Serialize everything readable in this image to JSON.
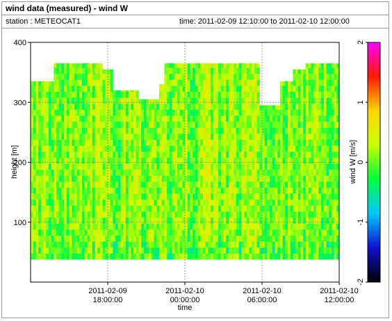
{
  "header": {
    "title": "wind data (measured) - wind W",
    "station": "station : METEOCAT1",
    "time_range": "time: 2011-02-09 12:10:00 to 2011-02-10 12:00:00"
  },
  "chart_data": {
    "type": "heatmap",
    "xlabel": "time",
    "ylabel": "height [m]",
    "xlim": [
      0,
      24
    ],
    "ylim": [
      0,
      400
    ],
    "x_ticks": [
      {
        "x": 6,
        "date": "2011-02-09",
        "time": "18:00:00"
      },
      {
        "x": 12,
        "date": "2011-02-10",
        "time": "00:00:00"
      },
      {
        "x": 18,
        "date": "2011-02-10",
        "time": "06:00:00"
      },
      {
        "x": 24,
        "date": "2011-02-10",
        "time": "12:00:00"
      }
    ],
    "y_ticks": [
      100,
      200,
      300,
      400
    ],
    "grid": true,
    "colorbar": {
      "label": "wind W [m/s]",
      "min": -2,
      "max": 2,
      "ticks": [
        -2,
        -1,
        0,
        1,
        2
      ],
      "stops": [
        "#000000",
        "#1010d0",
        "#00c8ff",
        "#00ff40",
        "#c8ff00",
        "#ffd700",
        "#ff1a00",
        "#ff00ff"
      ]
    },
    "data_coverage": {
      "min_height": 38,
      "top_heights": [
        {
          "x": 0,
          "top": 335
        },
        {
          "x": 1.6,
          "top": 365
        },
        {
          "x": 5.6,
          "top": 355
        },
        {
          "x": 6.4,
          "top": 320
        },
        {
          "x": 8.3,
          "top": 305
        },
        {
          "x": 9.8,
          "top": 330
        },
        {
          "x": 10.2,
          "top": 365
        },
        {
          "x": 17.7,
          "top": 295
        },
        {
          "x": 19.2,
          "top": 335
        },
        {
          "x": 20.2,
          "top": 355
        },
        {
          "x": 21.3,
          "top": 365
        },
        {
          "x": 24,
          "top": 365
        }
      ],
      "typical_value": 0.1
    }
  }
}
